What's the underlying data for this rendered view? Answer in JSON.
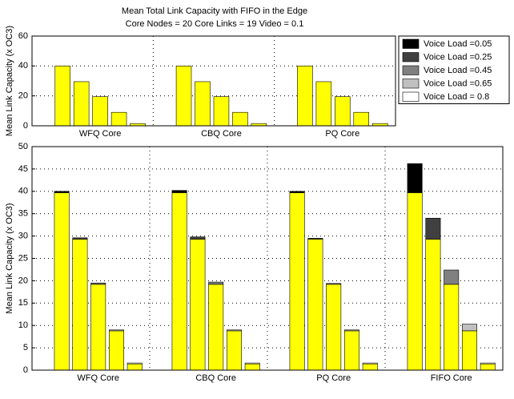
{
  "chart_data": [
    {
      "type": "bar",
      "title": "Mean Total Link Capacity with FIFO in the Edge",
      "subtitle": "Core Nodes = 20 Core Links = 19 Video = 0.1",
      "ylabel": "Mean Link Capacity (x OC3)",
      "categories": [
        "WFQ Core",
        "CBQ Core",
        "PQ Core"
      ],
      "bar_color": "#ffff00",
      "series": [
        {
          "name": "Voice Load =0.05",
          "color": "#000000",
          "values": [
            40,
            40,
            40
          ]
        },
        {
          "name": "Voice Load =0.25",
          "color": "#404040",
          "values": [
            29.5,
            29.5,
            29.5
          ]
        },
        {
          "name": "Voice Load =0.45",
          "color": "#808080",
          "values": [
            19.5,
            19.5,
            19.5
          ]
        },
        {
          "name": "Voice Load =0.65",
          "color": "#c0c0c0",
          "values": [
            9,
            9,
            9
          ]
        },
        {
          "name": "Voice Load = 0.8",
          "color": "#ffffff",
          "values": [
            1.5,
            1.5,
            1.5
          ]
        }
      ],
      "ylim": [
        0,
        60
      ],
      "yticks": [
        0,
        20,
        40,
        60
      ],
      "grid": true
    },
    {
      "type": "stacked_bar",
      "ylabel": "Mean Link Capacity (x OC3)",
      "categories": [
        "WFQ Core",
        "CBQ Core",
        "PQ Core",
        "FIFO Core"
      ],
      "base_color": "#ffff00",
      "series": [
        {
          "color": "#000000",
          "base_values": [
            39.7,
            39.7,
            39.7,
            39.7
          ],
          "values": [
            0.3,
            0.5,
            0.3,
            6.5
          ]
        },
        {
          "color": "#404040",
          "base_values": [
            29.3,
            29.3,
            29.3,
            29.3
          ],
          "values": [
            0.3,
            0.5,
            0.2,
            4.7
          ]
        },
        {
          "color": "#808080",
          "base_values": [
            19.2,
            19.2,
            19.2,
            19.2
          ],
          "values": [
            0.3,
            0.5,
            0.2,
            3.2
          ]
        },
        {
          "color": "#c0c0c0",
          "base_values": [
            8.8,
            8.8,
            8.8,
            8.8
          ],
          "values": [
            0.2,
            0.2,
            0.2,
            1.5
          ]
        },
        {
          "color": "#ffffff",
          "base_values": [
            1.4,
            1.4,
            1.4,
            1.4
          ],
          "values": [
            0.2,
            0.2,
            0.2,
            0.2
          ]
        }
      ],
      "ylim": [
        0,
        50
      ],
      "yticks": [
        0,
        5,
        10,
        15,
        20,
        25,
        30,
        35,
        40,
        45,
        50
      ],
      "grid": true
    }
  ]
}
